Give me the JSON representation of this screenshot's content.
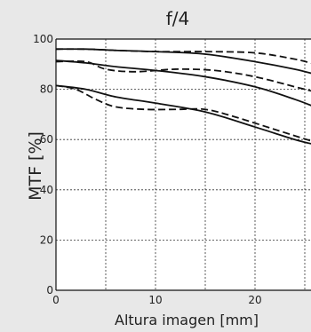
{
  "chart_data": {
    "type": "line",
    "title": "f/4",
    "xlabel": "Altura imagen [mm]",
    "ylabel": "MTF [%]",
    "xlim": [
      0,
      26
    ],
    "ylim": [
      0,
      100
    ],
    "x_ticks": [
      0,
      10,
      20
    ],
    "y_ticks": [
      0,
      20,
      40,
      60,
      80,
      100
    ],
    "grid": "dotted",
    "legend": "none",
    "colors": {
      "line": "#111111",
      "background": "#e8e8e8",
      "plot": "#ffffff"
    },
    "series": [
      {
        "style": "solid",
        "x": [
          0,
          3,
          6,
          10,
          15,
          20,
          24,
          26
        ],
        "y": [
          96,
          96,
          95.5,
          95,
          94,
          91,
          88,
          86
        ]
      },
      {
        "style": "dashed",
        "x": [
          0,
          3,
          6,
          10,
          15,
          20,
          24,
          26
        ],
        "y": [
          96,
          96,
          95.5,
          95,
          95,
          94.5,
          92,
          90
        ]
      },
      {
        "style": "solid",
        "x": [
          0,
          3,
          6,
          10,
          15,
          20,
          24,
          26
        ],
        "y": [
          91.5,
          90.5,
          89,
          87.5,
          85,
          81,
          76,
          73
        ]
      },
      {
        "style": "dashed",
        "x": [
          0,
          3,
          5,
          8,
          12,
          16,
          20,
          24,
          26
        ],
        "y": [
          91,
          91,
          88,
          87,
          88,
          87.5,
          85,
          81,
          79
        ]
      },
      {
        "style": "solid",
        "x": [
          0,
          3,
          6,
          10,
          15,
          20,
          24,
          26
        ],
        "y": [
          81.5,
          80,
          77,
          74.5,
          71,
          65,
          60,
          58
        ]
      },
      {
        "style": "dashed",
        "x": [
          0,
          2,
          4,
          6,
          9,
          12,
          15,
          18,
          22,
          26
        ],
        "y": [
          81.5,
          80,
          76,
          73,
          72,
          72,
          72,
          69,
          64,
          59
        ]
      }
    ]
  }
}
